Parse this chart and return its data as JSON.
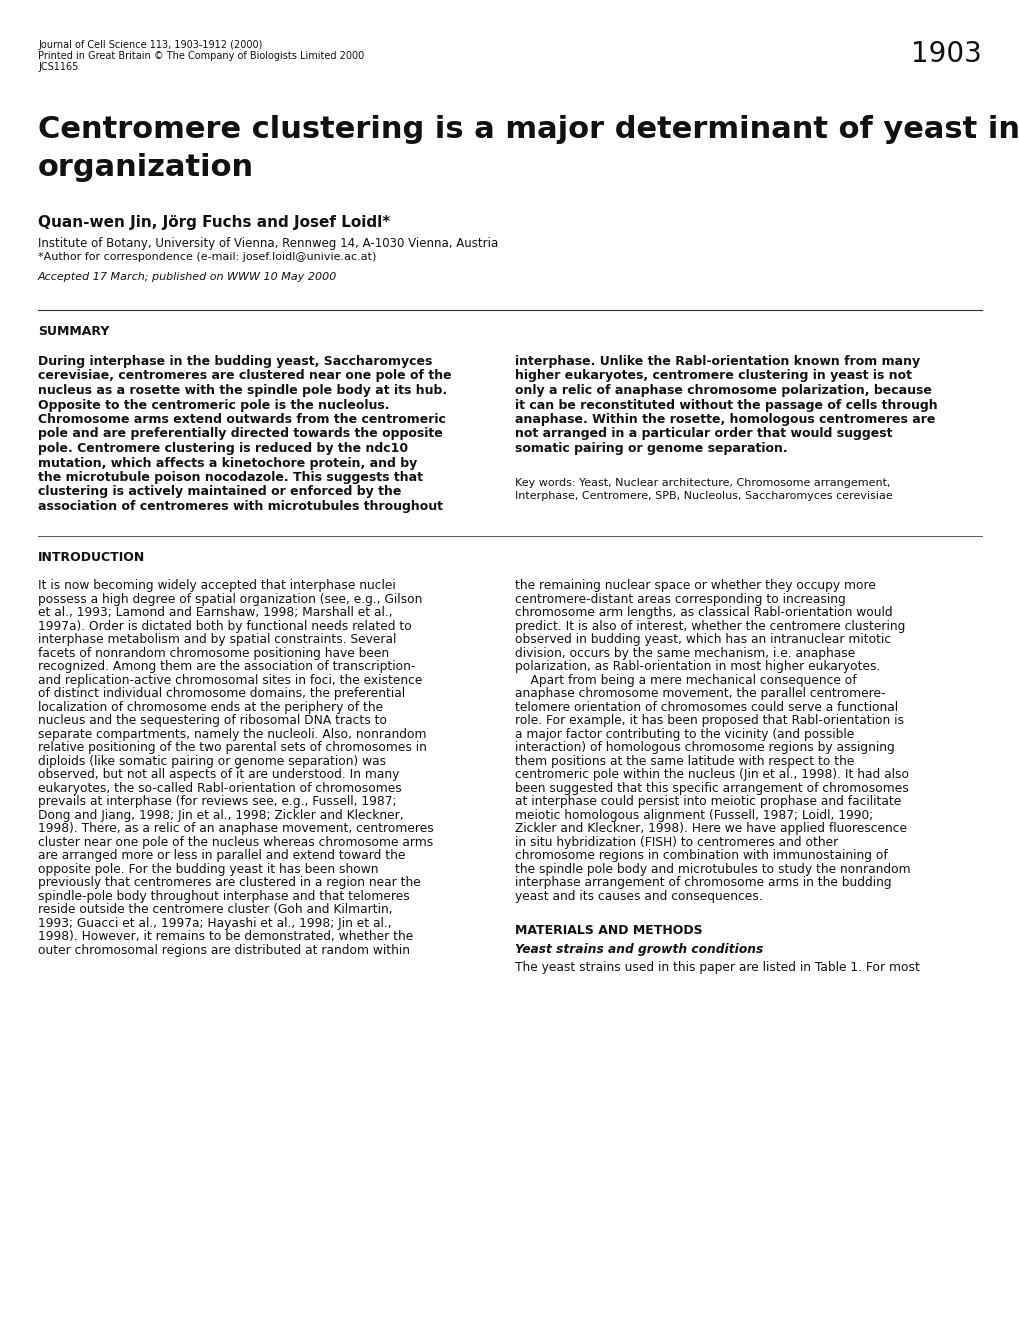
{
  "background_color": "#ffffff",
  "page_number": "1903",
  "header_lines": [
    "Journal of Cell Science 113, 1903-1912 (2000)",
    "Printed in Great Britain © The Company of Biologists Limited 2000",
    "JCS1165"
  ],
  "title_line1": "Centromere clustering is a major determinant of yeast interphase nuclear",
  "title_line2": "organization",
  "authors": "Quan-wen Jin, Jörg Fuchs and Josef Loidl*",
  "affiliation": "Institute of Botany, University of Vienna, Rennweg 14, A-1030 Vienna, Austria",
  "correspondence": "*Author for correspondence (e-mail: josef.loidl@univie.ac.at)",
  "accepted": "Accepted 17 March; published on WWW 10 May 2000",
  "summary_title": "SUMMARY",
  "summary_left_lines": [
    "During interphase in the budding yeast, Saccharomyces",
    "cerevisiae, centromeres are clustered near one pole of the",
    "nucleus as a rosette with the spindle pole body at its hub.",
    "Opposite to the centromeric pole is the nucleolus.",
    "Chromosome arms extend outwards from the centromeric",
    "pole and are preferentially directed towards the opposite",
    "pole. Centromere clustering is reduced by the ndc10",
    "mutation, which affects a kinetochore protein, and by",
    "the microtubule poison nocodazole. This suggests that",
    "clustering is actively maintained or enforced by the",
    "association of centromeres with microtubules throughout"
  ],
  "summary_right_lines": [
    "interphase. Unlike the Rabl-orientation known from many",
    "higher eukaryotes, centromere clustering in yeast is not",
    "only a relic of anaphase chromosome polarization, because",
    "it can be reconstituted without the passage of cells through",
    "anaphase. Within the rosette, homologous centromeres are",
    "not arranged in a particular order that would suggest",
    "somatic pairing or genome separation."
  ],
  "keywords_lines": [
    "Key words: Yeast, Nuclear architecture, Chromosome arrangement,",
    "Interphase, Centromere, SPB, Nucleolus, Saccharomyces cerevisiae"
  ],
  "intro_title": "INTRODUCTION",
  "intro_left_lines": [
    "It is now becoming widely accepted that interphase nuclei",
    "possess a high degree of spatial organization (see, e.g., Gilson",
    "et al., 1993; Lamond and Earnshaw, 1998; Marshall et al.,",
    "1997a). Order is dictated both by functional needs related to",
    "interphase metabolism and by spatial constraints. Several",
    "facets of nonrandom chromosome positioning have been",
    "recognized. Among them are the association of transcription-",
    "and replication-active chromosomal sites in foci, the existence",
    "of distinct individual chromosome domains, the preferential",
    "localization of chromosome ends at the periphery of the",
    "nucleus and the sequestering of ribosomal DNA tracts to",
    "separate compartments, namely the nucleoli. Also, nonrandom",
    "relative positioning of the two parental sets of chromosomes in",
    "diploids (like somatic pairing or genome separation) was",
    "observed, but not all aspects of it are understood. In many",
    "eukaryotes, the so-called Rabl-orientation of chromosomes",
    "prevails at interphase (for reviews see, e.g., Fussell, 1987;",
    "Dong and Jiang, 1998; Jin et al., 1998; Zickler and Kleckner,",
    "1998). There, as a relic of an anaphase movement, centromeres",
    "cluster near one pole of the nucleus whereas chromosome arms",
    "are arranged more or less in parallel and extend toward the",
    "opposite pole. For the budding yeast it has been shown",
    "previously that centromeres are clustered in a region near the",
    "spindle-pole body throughout interphase and that telomeres",
    "reside outside the centromere cluster (Goh and Kilmartin,",
    "1993; Guacci et al., 1997a; Hayashi et al., 1998; Jin et al.,",
    "1998). However, it remains to be demonstrated, whether the",
    "outer chromosomal regions are distributed at random within"
  ],
  "intro_right_lines": [
    "the remaining nuclear space or whether they occupy more",
    "centromere-distant areas corresponding to increasing",
    "chromosome arm lengths, as classical Rabl-orientation would",
    "predict. It is also of interest, whether the centromere clustering",
    "observed in budding yeast, which has an intranuclear mitotic",
    "division, occurs by the same mechanism, i.e. anaphase",
    "polarization, as Rabl-orientation in most higher eukaryotes.",
    "    Apart from being a mere mechanical consequence of",
    "anaphase chromosome movement, the parallel centromere-",
    "telomere orientation of chromosomes could serve a functional",
    "role. For example, it has been proposed that Rabl-orientation is",
    "a major factor contributing to the vicinity (and possible",
    "interaction) of homologous chromosome regions by assigning",
    "them positions at the same latitude with respect to the",
    "centromeric pole within the nucleus (Jin et al., 1998). It had also",
    "been suggested that this specific arrangement of chromosomes",
    "at interphase could persist into meiotic prophase and facilitate",
    "meiotic homologous alignment (Fussell, 1987; Loidl, 1990;",
    "Zickler and Kleckner, 1998). Here we have applied fluorescence",
    "in situ hybridization (FISH) to centromeres and other",
    "chromosome regions in combination with immunostaining of",
    "the spindle pole body and microtubules to study the nonrandom",
    "interphase arrangement of chromosome arms in the budding",
    "yeast and its causes and consequences."
  ],
  "mat_title": "MATERIALS AND METHODS",
  "mat_subtitle": "Yeast strains and growth conditions",
  "mat_text": "The yeast strains used in this paper are listed in Table 1. For most"
}
